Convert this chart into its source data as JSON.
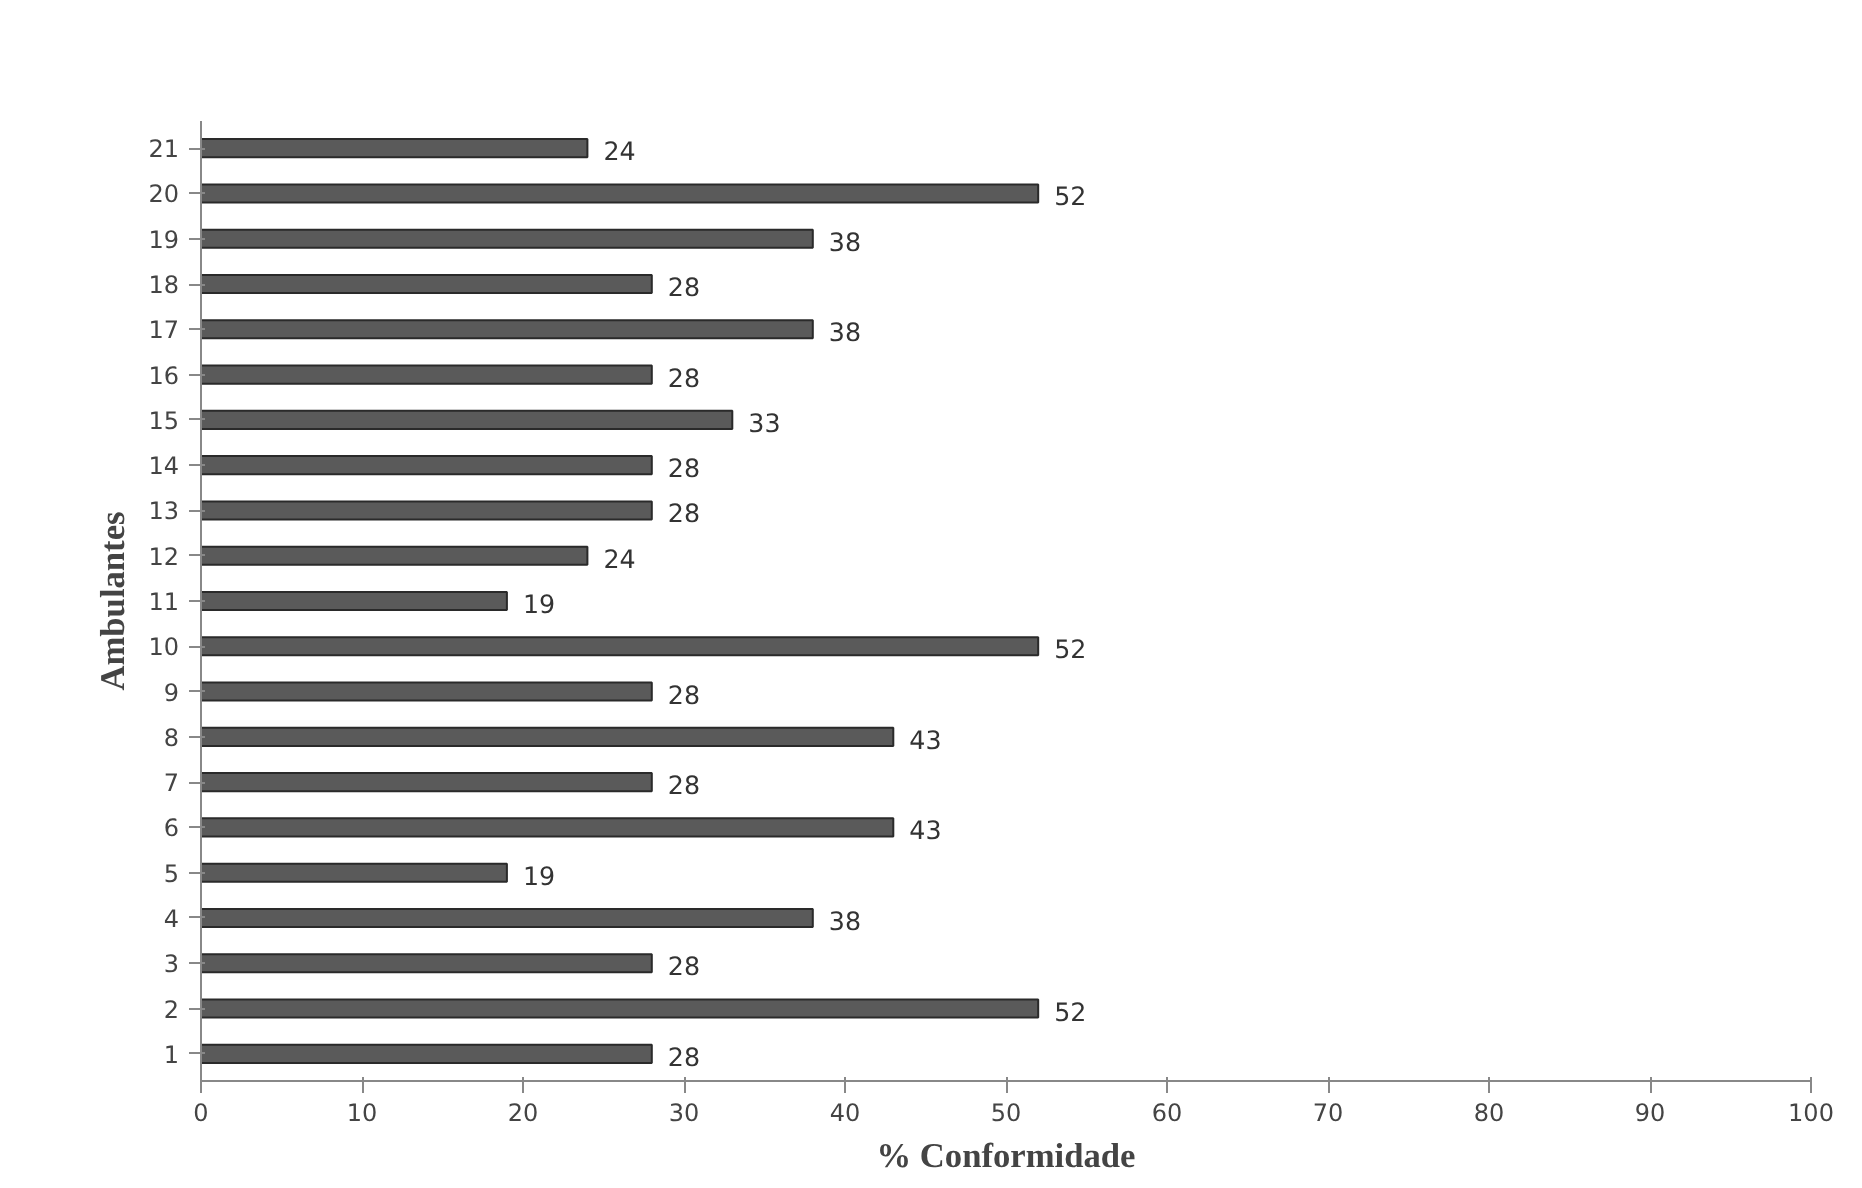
{
  "chart_data": {
    "type": "bar",
    "orientation": "horizontal",
    "xlabel": "% Conformidade",
    "ylabel": "Ambulantes",
    "categories": [
      "21",
      "20",
      "19",
      "18",
      "17",
      "16",
      "15",
      "14",
      "13",
      "12",
      "11",
      "10",
      "9",
      "8",
      "7",
      "6",
      "5",
      "4",
      "3",
      "2",
      "1"
    ],
    "values": [
      24,
      52,
      38,
      28,
      38,
      28,
      33,
      28,
      28,
      24,
      19,
      52,
      28,
      43,
      28,
      43,
      19,
      38,
      28,
      52,
      28
    ],
    "color": "#5a5a5a",
    "xlim": [
      0,
      100
    ],
    "xticks": [
      0,
      10,
      20,
      30,
      40,
      50,
      60,
      70,
      80,
      90,
      100
    ],
    "grid": false,
    "data_labels": true
  }
}
